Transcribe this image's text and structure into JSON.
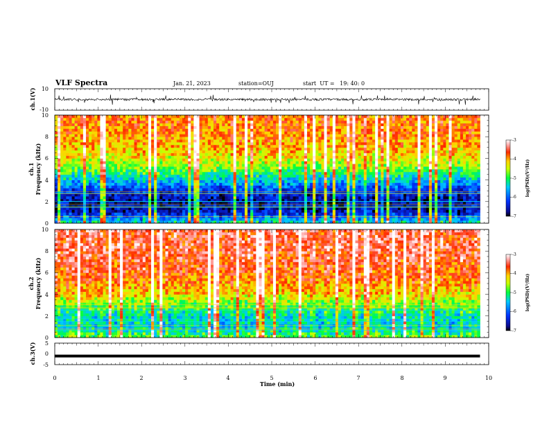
{
  "header": {
    "title": "VLF Spectra",
    "date": "Jan. 21, 2023",
    "station": "station=OUJ",
    "start": "start  UT =   19: 40: 0"
  },
  "chart_data": [
    {
      "name": "ch1-waveform",
      "type": "line",
      "ylabel": "ch.1(V)",
      "ylim": [
        -10,
        10
      ],
      "yticks": [
        "10",
        "-10"
      ],
      "xlim": [
        0,
        10
      ],
      "baseline": 0,
      "noise_amplitude": 2,
      "data_end_min": 9.8
    },
    {
      "name": "ch1-spectrogram",
      "type": "heatmap",
      "ylabel": "ch.1",
      "ylabel2": "Frequency (kHz)",
      "ylim": [
        0,
        10
      ],
      "yticks": [
        "0",
        "2",
        "4",
        "6",
        "8",
        "10"
      ],
      "xlim": [
        0,
        10
      ],
      "data_end_min": 9.8,
      "colorbar": {
        "label": "log(PSD)(V²/Hz)",
        "min": -7,
        "max": -3,
        "ticks": [
          "-3",
          "-4",
          "-5",
          "-6",
          "-7"
        ]
      },
      "profile_freq_khz": [
        0,
        1,
        2,
        3,
        4,
        5,
        6,
        8,
        10
      ],
      "profile_log_psd": [
        -5.2,
        -6.5,
        -6.7,
        -6.3,
        -5.5,
        -4.8,
        -4.3,
        -3.9,
        -3.8
      ]
    },
    {
      "name": "ch2-spectrogram",
      "type": "heatmap",
      "ylabel": "ch.2",
      "ylabel2": "Frequency (kHz)",
      "ylim": [
        0,
        10
      ],
      "yticks": [
        "0",
        "2",
        "4",
        "6",
        "8",
        "10"
      ],
      "xlim": [
        0,
        10
      ],
      "data_end_min": 9.8,
      "colorbar": {
        "label": "log(PSD)(V²/Hz)",
        "min": -7,
        "max": -3,
        "ticks": [
          "-3",
          "-4",
          "-5",
          "-6",
          "-7"
        ]
      },
      "profile_freq_khz": [
        0,
        1,
        2,
        3,
        4,
        5,
        6,
        8,
        10
      ],
      "profile_log_psd": [
        -4.8,
        -5.4,
        -5.3,
        -4.8,
        -4.2,
        -3.9,
        -3.7,
        -3.5,
        -3.5
      ]
    },
    {
      "name": "ch3-waveform",
      "type": "line",
      "ylabel": "ch.3(V)",
      "ylim": [
        -5,
        5
      ],
      "yticks": [
        "5",
        "0",
        "-5"
      ],
      "xlim": [
        0,
        10
      ],
      "baseline": -1,
      "data_end_min": 9.8
    }
  ],
  "xaxis": {
    "label": "Time (min)",
    "ticks": [
      "0",
      "1",
      "2",
      "3",
      "4",
      "5",
      "6",
      "7",
      "8",
      "9",
      "10"
    ]
  }
}
